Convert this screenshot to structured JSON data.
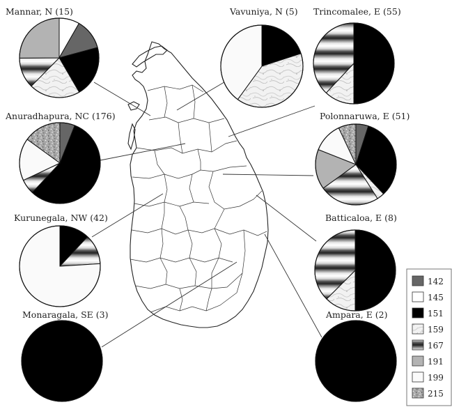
{
  "figure": {
    "legend": {
      "title": "",
      "items": [
        {
          "label": "142",
          "pattern": "dark-gray",
          "color": "#666666"
        },
        {
          "label": "145",
          "pattern": "white",
          "color": "#ffffff"
        },
        {
          "label": "151",
          "pattern": "black",
          "color": "#000000"
        },
        {
          "label": "159",
          "pattern": "marble",
          "color": "#eeeeee"
        },
        {
          "label": "167",
          "pattern": "horizontal-bands",
          "color": "#999999"
        },
        {
          "label": "191",
          "pattern": "light-gray",
          "color": "#b3b3b3"
        },
        {
          "label": "199",
          "pattern": "white-bordered",
          "color": "#ffffff"
        },
        {
          "label": "215",
          "pattern": "speckled",
          "color": "#9a9a9a"
        }
      ]
    }
  },
  "chart_data": [
    {
      "type": "pie",
      "title": "Mannar, N (15)",
      "categories": [
        "145",
        "142",
        "151",
        "159",
        "167",
        "191"
      ],
      "values": [
        8.3,
        12.5,
        20.8,
        20.8,
        12.5,
        25.1
      ]
    },
    {
      "type": "pie",
      "title": "Vavuniya, N (5)",
      "categories": [
        "151",
        "159",
        "199"
      ],
      "values": [
        20,
        40,
        40
      ]
    },
    {
      "type": "pie",
      "title": "Trincomalee, E (55)",
      "categories": [
        "151",
        "159",
        "167"
      ],
      "values": [
        50,
        12,
        38
      ]
    },
    {
      "type": "pie",
      "title": "Anuradhapura, NC (176)",
      "categories": [
        "142",
        "151",
        "167",
        "199",
        "215"
      ],
      "values": [
        6,
        56,
        6,
        17,
        15
      ]
    },
    {
      "type": "pie",
      "title": "Polonnaruwa, E (51)",
      "categories": [
        "142",
        "151",
        "159",
        "167",
        "191",
        "199",
        "215"
      ],
      "values": [
        5,
        33,
        3,
        24,
        16,
        12,
        7
      ]
    },
    {
      "type": "pie",
      "title": "Kurunegala, NW (42)",
      "categories": [
        "151",
        "167",
        "199"
      ],
      "values": [
        12,
        12,
        76
      ]
    },
    {
      "type": "pie",
      "title": "Batticaloa, E (8)",
      "categories": [
        "151",
        "159",
        "167"
      ],
      "values": [
        50,
        12.5,
        37.5
      ]
    },
    {
      "type": "pie",
      "title": "Monaragala, SE (3)",
      "categories": [
        "151"
      ],
      "values": [
        100
      ]
    },
    {
      "type": "pie",
      "title": "Ampara, E (2)",
      "categories": [
        "151"
      ],
      "values": [
        100
      ]
    }
  ]
}
